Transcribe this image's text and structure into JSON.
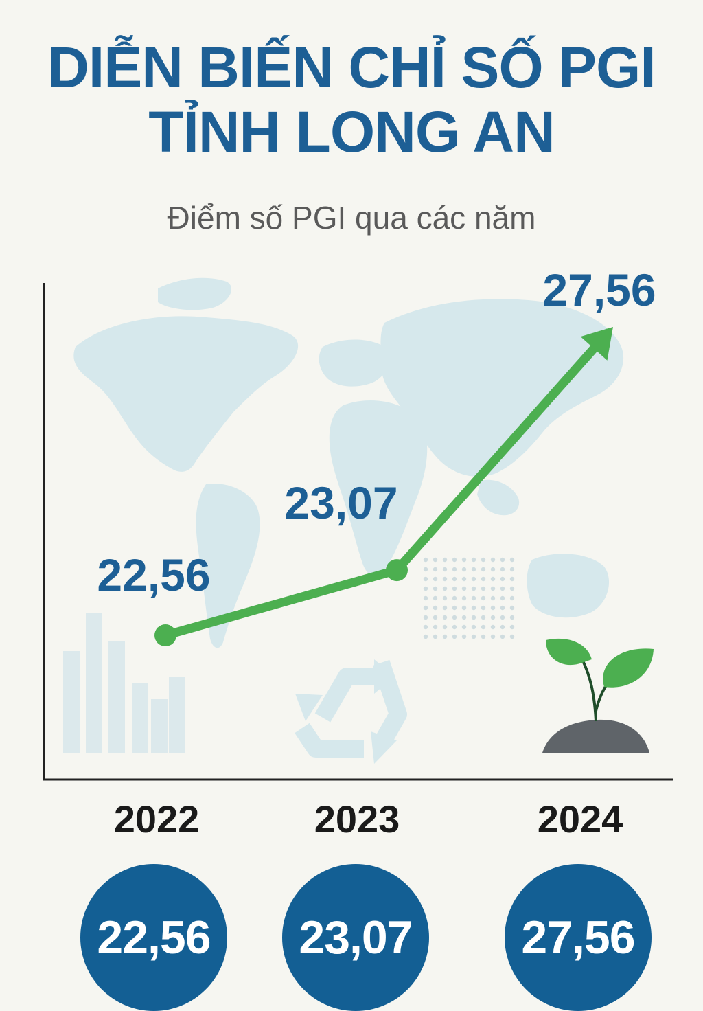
{
  "header": {
    "title_line1": "DIỄN BIẾN CHỈ SỐ PGI",
    "title_line2": "TỈNH LONG AN",
    "subtitle": "Điểm số PGI qua các năm"
  },
  "colors": {
    "title": "#1d5f95",
    "line": "#4caf50",
    "circle": "#135f94",
    "map": "#d6e8ec",
    "background": "#f6f6f1"
  },
  "icons": [
    "world-map-icon",
    "recycle-icon",
    "seedling-icon",
    "bar-chart-icon"
  ],
  "chart_data": {
    "type": "line",
    "categories": [
      "2022",
      "2023",
      "2024"
    ],
    "values": [
      22.56,
      23.07,
      27.56
    ],
    "value_labels": [
      "22,56",
      "23,07",
      "27,56"
    ],
    "grid": false,
    "arrow_end": true
  },
  "summary": [
    {
      "year": "2022",
      "value": "22,56"
    },
    {
      "year": "2023",
      "value": "23,07"
    },
    {
      "year": "2024",
      "value": "27,56"
    }
  ]
}
